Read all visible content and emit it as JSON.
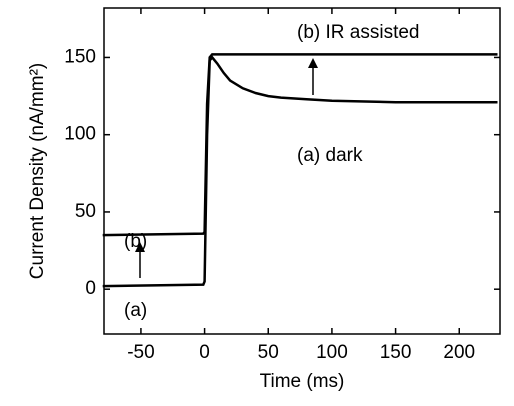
{
  "chart_data": {
    "type": "line",
    "xlabel": "Time (ms)",
    "ylabel": "Current Density (nA/mm²)",
    "x": [
      -80,
      -1,
      0,
      2,
      4,
      6,
      10,
      15,
      20,
      30,
      40,
      50,
      60,
      80,
      100,
      150,
      200,
      230
    ],
    "series": [
      {
        "name": "(a) dark",
        "color": "#000000",
        "values": [
          2,
          3,
          5,
          100,
          148,
          150,
          146,
          140,
          135,
          130,
          127,
          125,
          124,
          123,
          122,
          121,
          121,
          121
        ]
      },
      {
        "name": "(b) IR assisted",
        "color": "#000000",
        "values": [
          35,
          36,
          37,
          120,
          150,
          152,
          152,
          152,
          152,
          152,
          152,
          152,
          152,
          152,
          152,
          152,
          152,
          152
        ]
      }
    ],
    "annotations": [
      "(b)",
      "(a)"
    ],
    "xlim": [
      -79,
      232
    ],
    "ylim": [
      -29,
      182
    ],
    "xticks": [
      -50,
      0,
      50,
      100,
      150,
      200
    ],
    "yticks": [
      0,
      50,
      100,
      150
    ]
  }
}
